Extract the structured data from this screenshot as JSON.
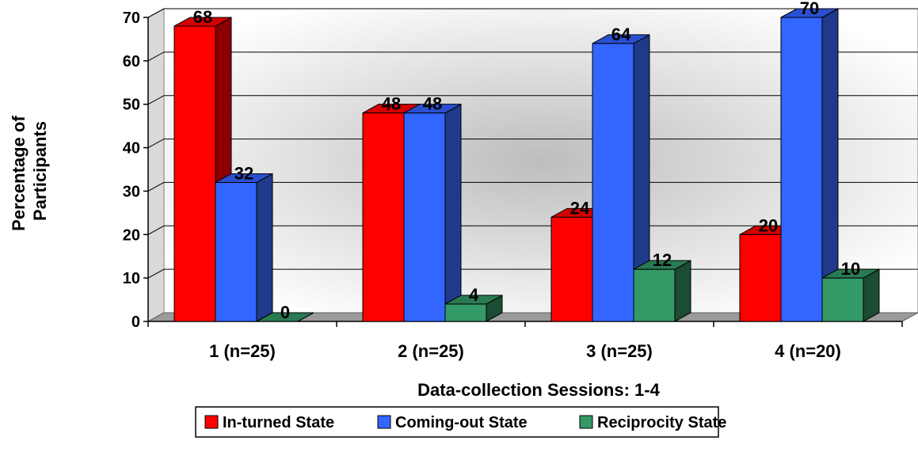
{
  "chart_data": {
    "type": "bar",
    "categories": [
      "1 (n=25)",
      "2 (n=25)",
      "3 (n=25)",
      "4 (n=20)"
    ],
    "series": [
      {
        "name": "In-turned State",
        "values": [
          68,
          48,
          24,
          20
        ],
        "color": "#ff0000",
        "side": "#8b0000",
        "top": "#d40000"
      },
      {
        "name": "Coming-out State",
        "values": [
          32,
          48,
          64,
          70
        ],
        "color": "#3366ff",
        "side": "#1f3a8a",
        "top": "#2a4fd0"
      },
      {
        "name": "Reciprocity State",
        "values": [
          0,
          4,
          12,
          10
        ],
        "color": "#339966",
        "side": "#1a4d33",
        "top": "#2a7a52"
      }
    ],
    "title": "",
    "xlabel": "Data-collection Sessions: 1-4",
    "ylabel_lines": [
      "Percentage of",
      "Participants"
    ],
    "ylim": [
      0,
      70
    ],
    "yticks": [
      0,
      10,
      20,
      30,
      40,
      50,
      60,
      70
    ],
    "grid": true,
    "legend_position": "bottom",
    "three_d": true
  }
}
